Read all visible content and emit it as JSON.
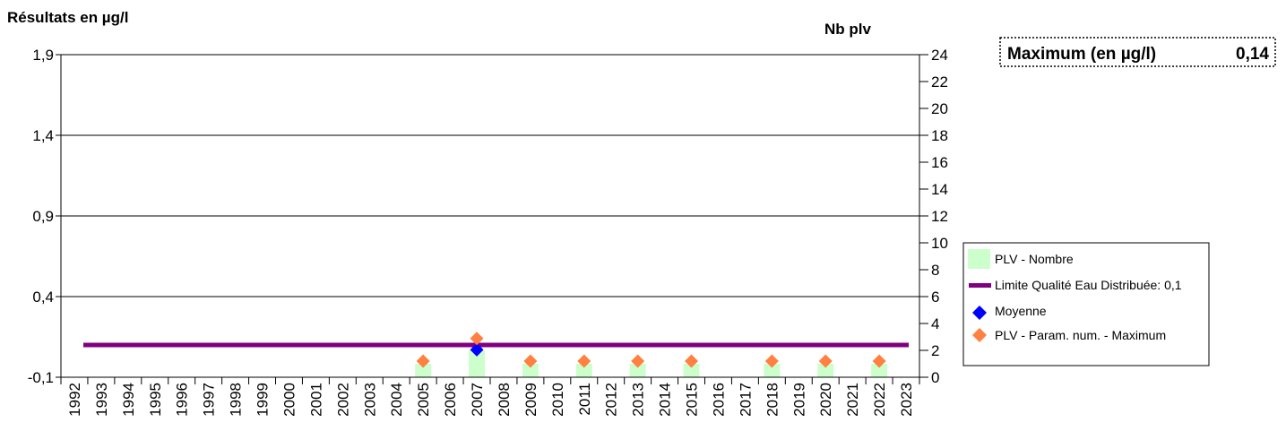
{
  "chart_data": {
    "type": "bar",
    "y_left_title": "Résultats en µg/l",
    "y_right_title": "Nb plv",
    "y_left_range": [
      -0.1,
      1.9
    ],
    "y_left_ticks": [
      "1,9",
      "1,4",
      "0,9",
      "0,4",
      "-0,1"
    ],
    "y_right_range": [
      0,
      24
    ],
    "y_right_ticks": [
      "24",
      "22",
      "20",
      "18",
      "16",
      "14",
      "12",
      "10",
      "8",
      "6",
      "4",
      "2",
      "0"
    ],
    "categories": [
      "1992",
      "1993",
      "1994",
      "1995",
      "1996",
      "1997",
      "1998",
      "1999",
      "2000",
      "2001",
      "2002",
      "2003",
      "2004",
      "2005",
      "2006",
      "2007",
      "2008",
      "2009",
      "2010",
      "2011",
      "2012",
      "2013",
      "2014",
      "2015",
      "2016",
      "2017",
      "2018",
      "2019",
      "2020",
      "2021",
      "2022",
      "2023"
    ],
    "grid": "horizontal",
    "series": [
      {
        "name": "PLV - Nombre",
        "kind": "bar",
        "axis": "right",
        "color": "#ccffcc",
        "points": [
          {
            "x": "2005",
            "y": 1
          },
          {
            "x": "2007",
            "y": 2
          },
          {
            "x": "2009",
            "y": 1
          },
          {
            "x": "2011",
            "y": 1
          },
          {
            "x": "2013",
            "y": 1
          },
          {
            "x": "2015",
            "y": 1
          },
          {
            "x": "2018",
            "y": 1
          },
          {
            "x": "2020",
            "y": 1
          },
          {
            "x": "2022",
            "y": 1
          }
        ]
      },
      {
        "name": "Limite Qualité Eau Distribuée: 0,1",
        "kind": "hline",
        "axis": "left",
        "color": "#800080",
        "value": 0.1
      },
      {
        "name": "Moyenne",
        "kind": "marker",
        "axis": "left",
        "color": "#0000ff",
        "points": [
          {
            "x": "2007",
            "y": 0.07
          }
        ]
      },
      {
        "name": "PLV - Param. num. - Maximum",
        "kind": "marker",
        "axis": "left",
        "color": "#ff8040",
        "points": [
          {
            "x": "2005",
            "y": 0.0
          },
          {
            "x": "2007",
            "y": 0.14
          },
          {
            "x": "2009",
            "y": 0.0
          },
          {
            "x": "2011",
            "y": 0.0
          },
          {
            "x": "2013",
            "y": 0.0
          },
          {
            "x": "2015",
            "y": 0.0
          },
          {
            "x": "2018",
            "y": 0.0
          },
          {
            "x": "2020",
            "y": 0.0
          },
          {
            "x": "2022",
            "y": 0.0
          }
        ]
      }
    ],
    "legend_position": "right",
    "summary_box": {
      "label": "Maximum (en µg/l)",
      "value": "0,14"
    }
  }
}
